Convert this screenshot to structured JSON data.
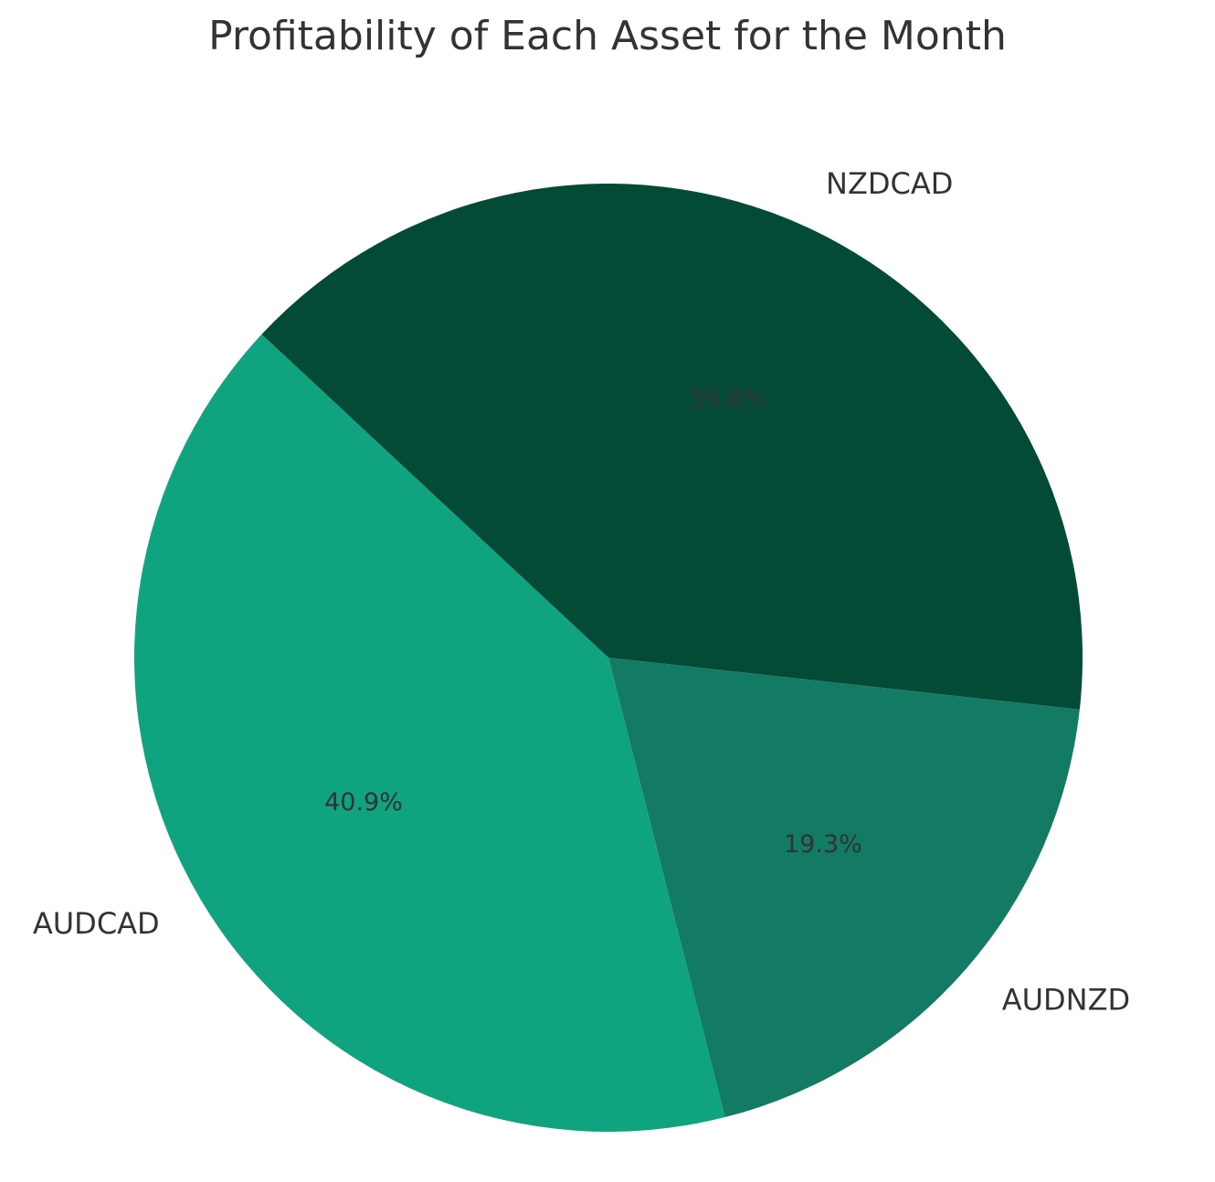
{
  "chart_data": {
    "type": "pie",
    "title": "Profitability of Each Asset for the Month",
    "slices": [
      {
        "label": "NZDCAD",
        "percent": 39.8,
        "percent_label": "39.8%",
        "color": "#034a37"
      },
      {
        "label": "AUDNZD",
        "percent": 19.3,
        "percent_label": "19.3%",
        "color": "#137a63"
      },
      {
        "label": "AUDCAD",
        "percent": 40.9,
        "percent_label": "40.9%",
        "color": "#10a37f"
      }
    ],
    "start_angle_deg": 137,
    "direction": "clockwise",
    "legend": "none"
  }
}
